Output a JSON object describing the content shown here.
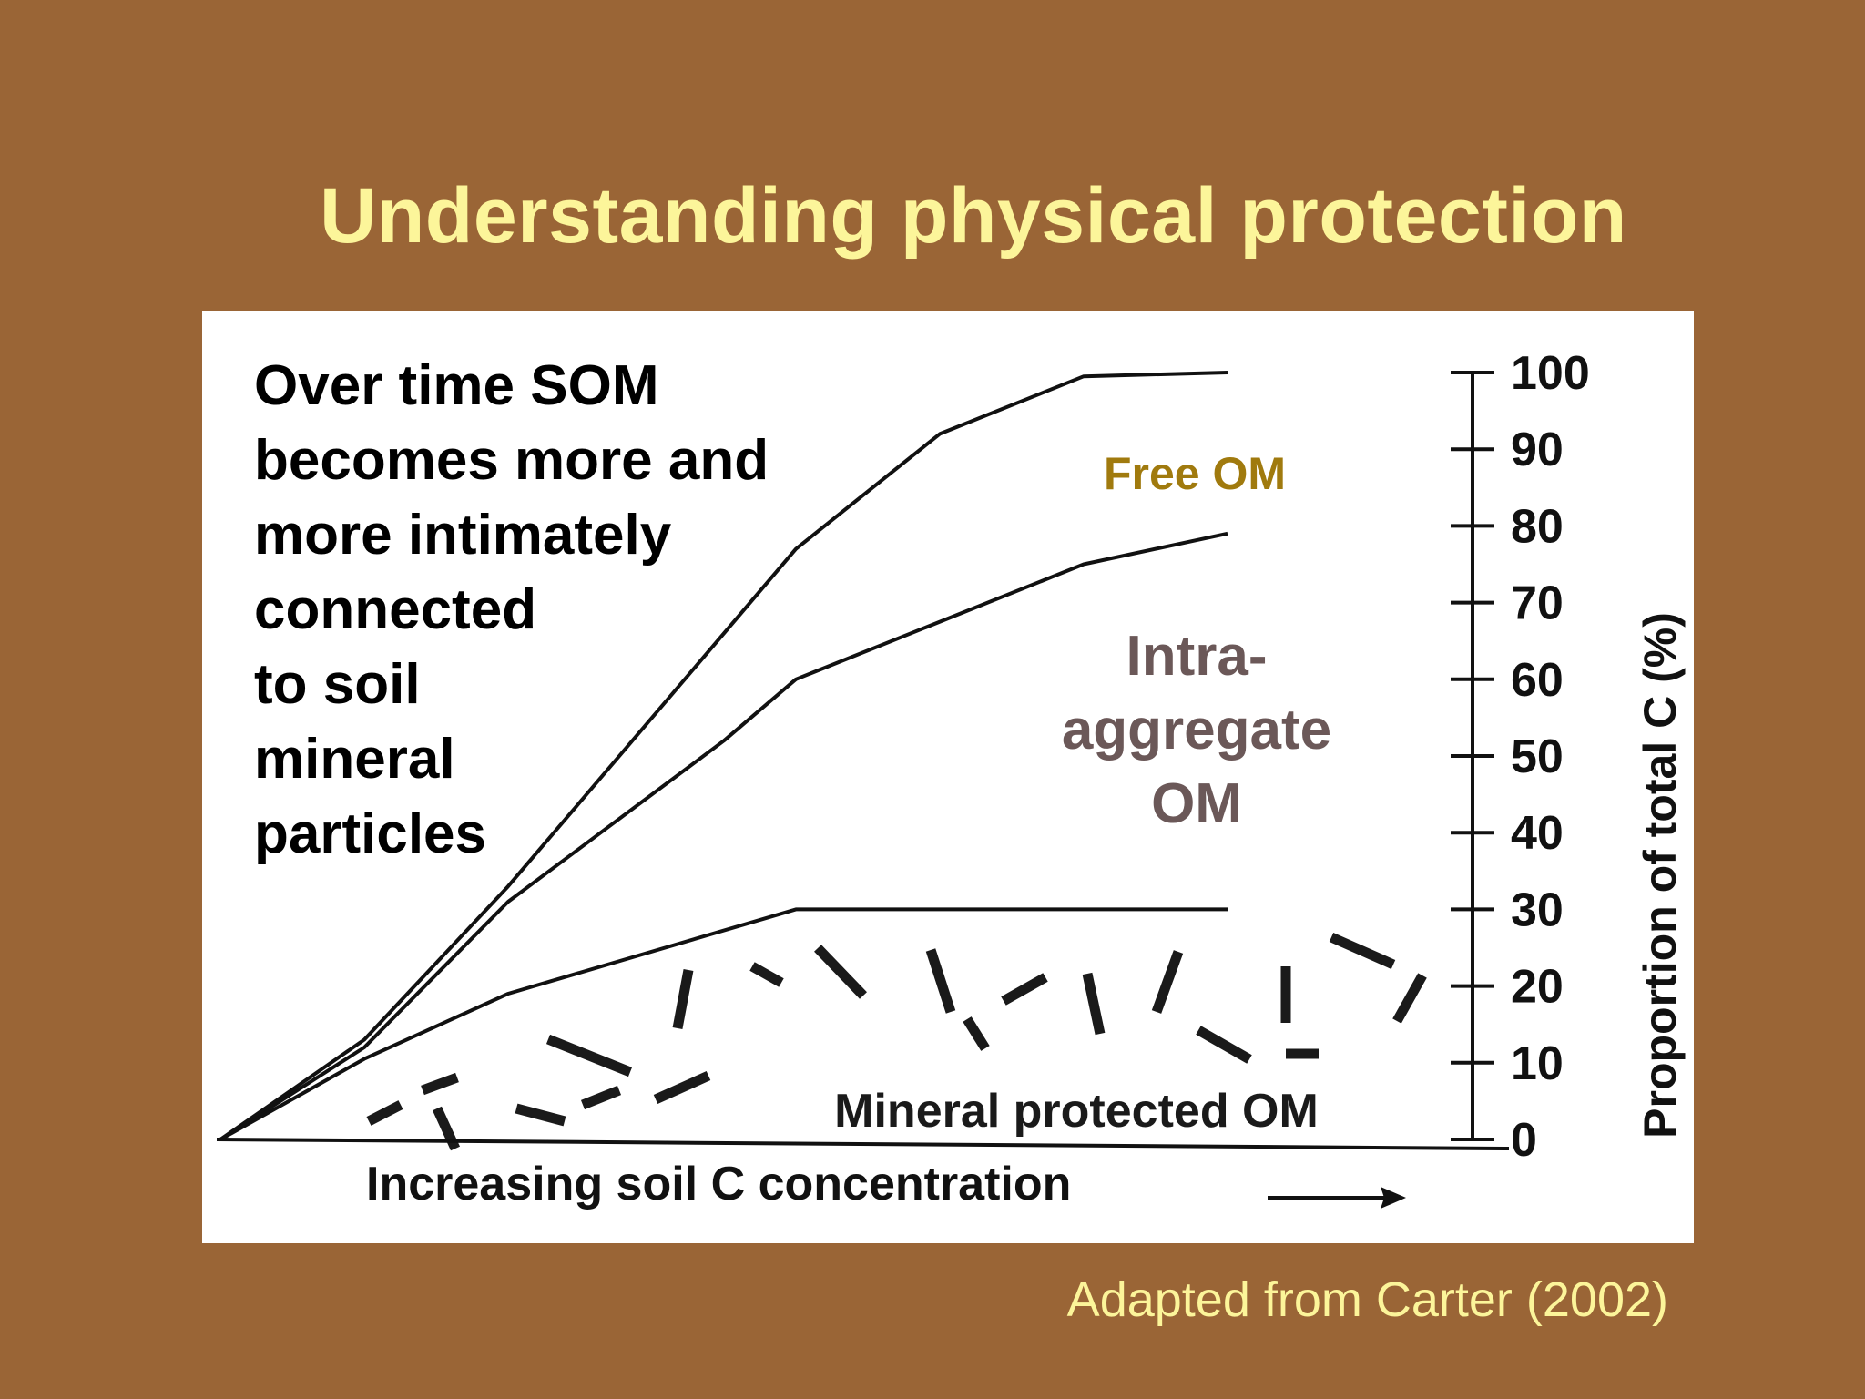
{
  "slide": {
    "title": "Understanding physical protection",
    "caption": "Adapted from Carter (2002)",
    "note_lines": [
      "Over time SOM",
      "becomes more and",
      "more intimately",
      "connected",
      "to soil",
      "mineral",
      "particles"
    ]
  },
  "chart_data": {
    "type": "area",
    "x_axis_label": "Increasing soil C concentration",
    "y_axis_label": "Proportion of total C (%)",
    "ylim": [
      0,
      100
    ],
    "yticks": [
      0,
      10,
      20,
      30,
      40,
      50,
      60,
      70,
      80,
      90,
      100
    ],
    "region_labels": {
      "free": "Free OM",
      "intra": [
        "Intra-",
        "aggregate",
        "OM"
      ],
      "mineral": "Mineral protected OM"
    },
    "colors": {
      "free_label": "#a07a0e",
      "intra_label": "#6b5858",
      "mineral_label": "#1a1a1a",
      "line": "#111111"
    },
    "boundaries": [
      {
        "id": "mineral-upper",
        "points": [
          [
            0,
            0
          ],
          [
            0.1,
            10.5
          ],
          [
            0.2,
            19
          ],
          [
            0.4,
            30
          ],
          [
            0.7,
            30
          ]
        ]
      },
      {
        "id": "intra-upper",
        "points": [
          [
            0,
            0
          ],
          [
            0.1,
            12
          ],
          [
            0.2,
            31
          ],
          [
            0.35,
            52
          ],
          [
            0.4,
            60
          ],
          [
            0.6,
            75
          ],
          [
            0.7,
            79
          ]
        ]
      },
      {
        "id": "free-upper",
        "points": [
          [
            0,
            0
          ],
          [
            0.1,
            13
          ],
          [
            0.2,
            33
          ],
          [
            0.4,
            77
          ],
          [
            0.5,
            92
          ],
          [
            0.6,
            99.5
          ],
          [
            0.7,
            100
          ]
        ]
      }
    ]
  }
}
